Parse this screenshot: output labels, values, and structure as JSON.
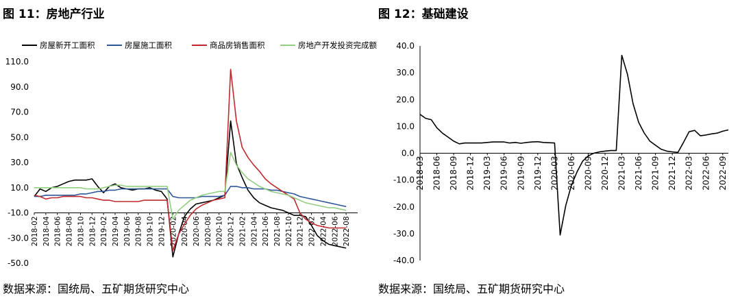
{
  "chart_data": [
    {
      "type": "line",
      "title": "图 11：房地产行业",
      "source": "数据来源：国统局、五矿期货研究中心",
      "ylim": [
        -50,
        110
      ],
      "yticks": [
        -50,
        -30,
        -10,
        10,
        30,
        50,
        70,
        90,
        110
      ],
      "ytick_labels": [
        "-50.0",
        "-30.0",
        "-10.0",
        "10.0",
        "30.0",
        "50.0",
        "70.0",
        "90.0",
        "110.0"
      ],
      "x_ticks": [
        "2018-02",
        "2018-04",
        "2018-06",
        "2018-08",
        "2018-10",
        "2018-12",
        "2019-02",
        "2019-04",
        "2019-06",
        "2019-08",
        "2019-10",
        "2019-12",
        "2020-02",
        "2020-04",
        "2020-06",
        "2020-08",
        "2020-10",
        "2020-12",
        "2021-02",
        "2021-04",
        "2021-06",
        "2021-08",
        "2021-10",
        "2021-12",
        "2022-02",
        "2022-04",
        "2022-06",
        "2022-08"
      ],
      "x_start": "2018-02",
      "x_end": "2022-10",
      "legend_position": "top",
      "series": [
        {
          "name": "房屋新开工面积",
          "color": "#000000",
          "values": [
            3,
            9,
            7,
            10,
            11,
            13,
            15,
            16,
            16,
            16,
            17,
            11,
            6,
            11,
            13,
            10,
            9,
            8,
            9,
            9,
            10,
            8,
            7,
            1,
            -45,
            -27,
            -13,
            -7,
            -3,
            -2,
            -1,
            0,
            2,
            4,
            63,
            29,
            18,
            8,
            2,
            -2,
            -4,
            -6,
            -7,
            -8,
            -10,
            -12,
            -12,
            -13,
            -20,
            -28,
            -32,
            -35,
            -36,
            -37,
            -38
          ]
        },
        {
          "name": "房屋施工面积",
          "color": "#2e5597",
          "values": [
            3,
            3,
            4,
            4,
            4,
            4,
            4,
            4,
            5,
            5,
            6,
            7,
            7,
            8,
            8,
            9,
            9,
            9,
            9,
            9,
            9,
            9,
            9,
            9,
            3,
            2,
            2,
            2,
            2,
            3,
            3,
            3,
            3,
            4,
            11,
            11,
            10,
            10,
            9,
            9,
            9,
            8,
            8,
            7,
            6,
            5,
            3,
            2,
            1,
            0,
            -1,
            -2,
            -3,
            -4,
            -5
          ]
        },
        {
          "name": "商品房销售面积",
          "color": "#c0282d",
          "values": [
            4,
            3,
            1,
            2,
            2,
            3,
            3,
            3,
            3,
            2,
            2,
            1,
            0,
            0,
            -1,
            -1,
            -1,
            -1,
            -1,
            0,
            0,
            0,
            0,
            0,
            -40,
            -27,
            -19,
            -12,
            -7,
            -4,
            -2,
            0,
            1,
            2,
            104,
            63,
            42,
            34,
            28,
            23,
            17,
            13,
            10,
            7,
            4,
            1,
            -10,
            -15,
            -18,
            -20,
            -21,
            -22,
            -22,
            -22,
            -22
          ]
        },
        {
          "name": "房地产开发投资完成额",
          "color": "#92cf82",
          "values": [
            10,
            10,
            10,
            10,
            10,
            10,
            10,
            10,
            10,
            9,
            9,
            9,
            10,
            11,
            12,
            12,
            11,
            11,
            11,
            11,
            11,
            11,
            11,
            11,
            -15,
            -8,
            -4,
            0,
            2,
            4,
            5,
            6,
            7,
            7,
            38,
            28,
            22,
            17,
            14,
            11,
            9,
            7,
            6,
            5,
            4,
            2,
            0,
            -2,
            -3,
            -4,
            -5,
            -6,
            -6,
            -7,
            -8
          ]
        }
      ]
    },
    {
      "type": "line",
      "title": "图 12：基础建设",
      "source": "数据来源：国统局、五矿期货研究中心",
      "ylim": [
        -40,
        40
      ],
      "yticks": [
        -40,
        -30,
        -20,
        -10,
        0,
        10,
        20,
        30,
        40
      ],
      "ytick_labels": [
        "-40.0",
        "-30.0",
        "-20.0",
        "-10.0",
        "0.0",
        "10.0",
        "20.0",
        "30.0",
        "40.0"
      ],
      "x_ticks": [
        "2018-03",
        "2018-06",
        "2018-09",
        "2018-12",
        "2019-03",
        "2019-06",
        "2019-09",
        "2019-12",
        "2020-03",
        "2020-06",
        "2020-09",
        "2020-12",
        "2021-03",
        "2021-06",
        "2021-09",
        "2021-12",
        "2022-03",
        "2022-06",
        "2022-09"
      ],
      "x_start": "2018-03",
      "x_end": "2022-10",
      "series": [
        {
          "name": "基础建设",
          "color": "#000000",
          "values": [
            14.5,
            13,
            12.5,
            9.5,
            7.5,
            6,
            4.5,
            3.5,
            3.8,
            3.8,
            3.8,
            3.8,
            4,
            4.2,
            4.2,
            4.2,
            3.8,
            4,
            3.7,
            4,
            4.2,
            4.3,
            4,
            3.9,
            3.8,
            -30.5,
            -19.5,
            -12,
            -7,
            -3,
            -1,
            0,
            0.5,
            0.8,
            1,
            1,
            36.5,
            29.5,
            18.5,
            11.5,
            7.5,
            4.5,
            3,
            1.5,
            0.8,
            0.5,
            0.3,
            4,
            8,
            8.5,
            6.5,
            6.8,
            7.2,
            7.5,
            8.2,
            8.7
          ]
        }
      ]
    }
  ]
}
